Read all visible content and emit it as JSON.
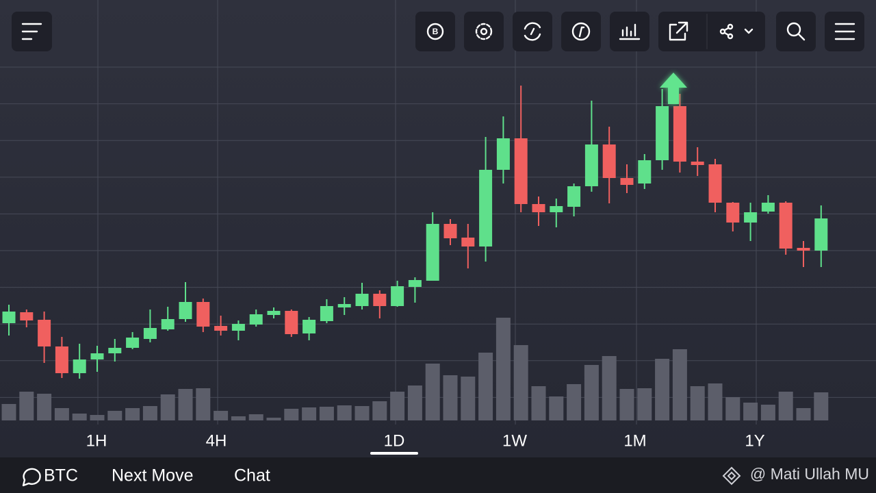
{
  "chart_data": {
    "type": "candlestick",
    "open": [
      248,
      264,
      253,
      214,
      175,
      195,
      204,
      212,
      225,
      239,
      254,
      279,
      244,
      237,
      246,
      260,
      266,
      233,
      251,
      271,
      273,
      291,
      273,
      301,
      310,
      393,
      373,
      360,
      472,
      518,
      422,
      410,
      418,
      448,
      509,
      460,
      452,
      486,
      565,
      484,
      480,
      424,
      395,
      411,
      424,
      358,
      354
    ],
    "high": [
      275,
      268,
      265,
      228,
      218,
      215,
      225,
      235,
      268,
      272,
      308,
      284,
      259,
      252,
      268,
      271,
      268,
      257,
      283,
      286,
      307,
      296,
      310,
      315,
      410,
      400,
      393,
      520,
      550,
      595,
      433,
      430,
      452,
      573,
      535,
      480,
      495,
      590,
      583,
      505,
      488,
      425,
      424,
      435,
      426,
      368,
      420
    ],
    "low": [
      230,
      242,
      190,
      168,
      167,
      177,
      192,
      210,
      220,
      237,
      250,
      235,
      230,
      223,
      243,
      255,
      228,
      223,
      248,
      260,
      268,
      255,
      272,
      278,
      310,
      362,
      328,
      338,
      452,
      410,
      390,
      388,
      404,
      440,
      423,
      438,
      444,
      472,
      468,
      463,
      410,
      382,
      368,
      408,
      348,
      330,
      330
    ],
    "close": [
      265,
      252,
      214,
      175,
      195,
      204,
      212,
      227,
      241,
      254,
      279,
      243,
      237,
      247,
      261,
      266,
      232,
      253,
      273,
      276,
      291,
      273,
      302,
      311,
      393,
      372,
      360,
      472,
      518,
      422,
      410,
      419,
      448,
      509,
      460,
      450,
      486,
      565,
      484,
      479,
      424,
      395,
      410,
      424,
      357,
      354,
      401
    ],
    "volume": [
      24,
      42,
      39,
      18,
      10,
      8,
      14,
      18,
      21,
      38,
      46,
      47,
      14,
      6,
      9,
      4,
      17,
      19,
      20,
      22,
      21,
      28,
      42,
      51,
      83,
      66,
      64,
      99,
      150,
      110,
      50,
      35,
      53,
      81,
      94,
      46,
      47,
      90,
      104,
      50,
      54,
      34,
      26,
      23,
      42,
      18,
      41
    ],
    "ylim": [
      100,
      720
    ],
    "vlim": [
      0,
      200
    ],
    "up_color": "#5fe08b",
    "down_color": "#f0605f",
    "volume_color": "#5c5e6a"
  },
  "timeframes": [
    "1H",
    "4H",
    "1D",
    "1W",
    "1M",
    "1Y"
  ],
  "selected_timeframe": 2,
  "nav": [
    "BTC",
    "Next Move",
    "Chat"
  ],
  "credit": "@ Mati Ullah MU"
}
